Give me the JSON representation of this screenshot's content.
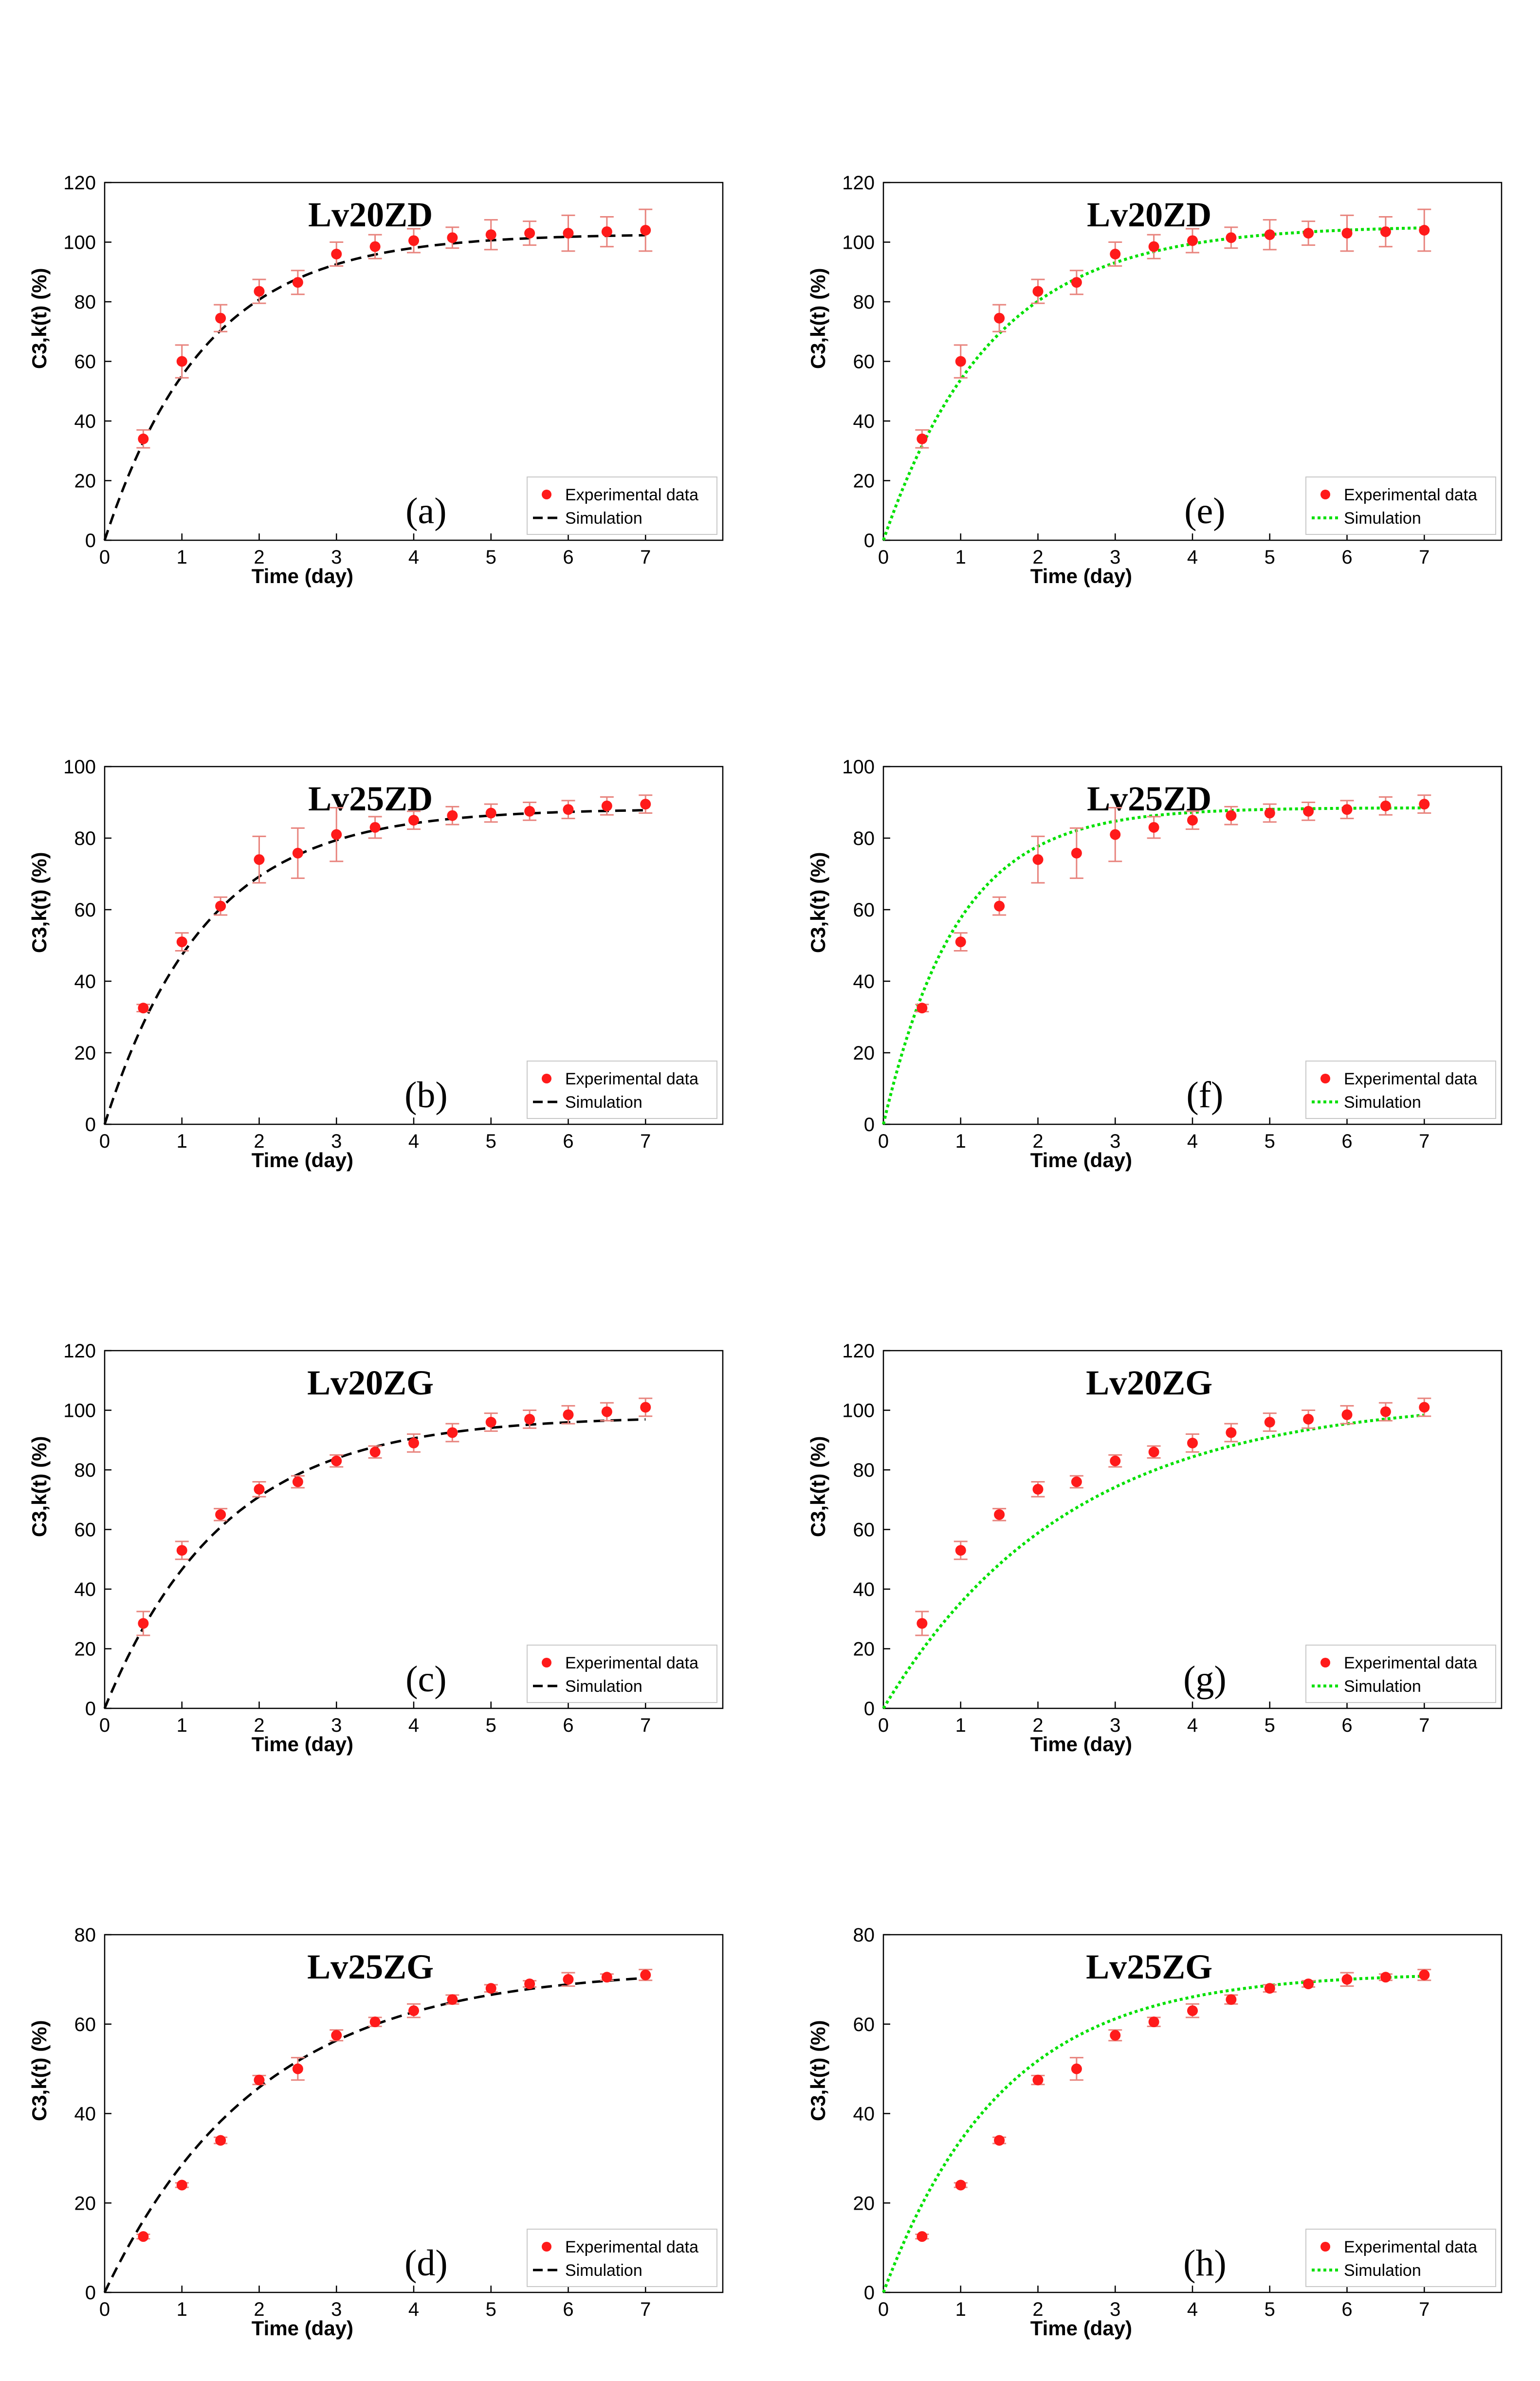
{
  "colors": {
    "points": "#ff1a1a",
    "errorbar": "#e8847e",
    "sim_dashed": "#000000",
    "sim_dotted": "#00e000"
  },
  "chart_data": [
    {
      "panel": "(a)",
      "type": "scatter",
      "title": "Lv20ZD",
      "xlabel": "Time (day)",
      "ylabel": "C3,k(t) (%)",
      "xlim": [
        0,
        8
      ],
      "ylim": [
        0,
        120
      ],
      "xticks": [
        0,
        1,
        2,
        3,
        4,
        5,
        6,
        7
      ],
      "yticks": [
        0,
        20,
        40,
        60,
        80,
        100,
        120
      ],
      "sim_style": "dashed",
      "sim_K": 102.8,
      "sim_tau": 1.3,
      "legend_position": "bottom-right",
      "legend": [
        "Experimental data",
        "Simulation"
      ],
      "x": [
        0.5,
        1,
        1.5,
        2,
        2.5,
        3,
        3.5,
        4,
        4.5,
        5,
        5.5,
        6,
        6.5,
        7
      ],
      "y": [
        34,
        60,
        74.5,
        83.5,
        86.5,
        96,
        98.5,
        100.5,
        101.5,
        102.5,
        103,
        103,
        103.5,
        104
      ],
      "err": [
        3,
        5.5,
        4.5,
        4,
        4,
        4,
        4,
        4,
        3.5,
        5,
        4,
        6,
        5,
        7
      ]
    },
    {
      "panel": "(b)",
      "type": "scatter",
      "title": "Lv25ZD",
      "xlabel": "Time (day)",
      "ylabel": "C3,k(t) (%)",
      "xlim": [
        0,
        8
      ],
      "ylim": [
        0,
        100
      ],
      "xticks": [
        0,
        1,
        2,
        3,
        4,
        5,
        6,
        7
      ],
      "yticks": [
        0,
        20,
        40,
        60,
        80,
        100
      ],
      "sim_style": "dashed",
      "sim_K": 88.2,
      "sim_tau": 1.3,
      "legend_position": "bottom-right",
      "legend": [
        "Experimental data",
        "Simulation"
      ],
      "x": [
        0.5,
        1,
        1.5,
        2,
        2.5,
        3,
        3.5,
        4,
        4.5,
        5,
        5.5,
        6,
        6.5,
        7
      ],
      "y": [
        32.5,
        51,
        61,
        74,
        75.8,
        81,
        83,
        85,
        86.3,
        87,
        87.5,
        88,
        89,
        89.5
      ],
      "err": [
        1,
        2.5,
        2.5,
        6.5,
        7,
        7.5,
        3,
        2.5,
        2.5,
        2.5,
        2.5,
        2.5,
        2.5,
        2.5
      ]
    },
    {
      "panel": "(c)",
      "type": "scatter",
      "title": "Lv20ZG",
      "xlabel": "Time (day)",
      "ylabel": "C3,k(t) (%)",
      "xlim": [
        0,
        8
      ],
      "ylim": [
        0,
        120
      ],
      "xticks": [
        0,
        1,
        2,
        3,
        4,
        5,
        6,
        7
      ],
      "yticks": [
        0,
        20,
        40,
        60,
        80,
        100,
        120
      ],
      "sim_style": "dashed",
      "sim_K": 98,
      "sim_tau": 1.55,
      "legend_position": "bottom-right",
      "legend": [
        "Experimental data",
        "Simulation"
      ],
      "x": [
        0.5,
        1,
        1.5,
        2,
        2.5,
        3,
        3.5,
        4,
        4.5,
        5,
        5.5,
        6,
        6.5,
        7
      ],
      "y": [
        28.5,
        53,
        65,
        73.5,
        76,
        83,
        86,
        89,
        92.5,
        96,
        97,
        98.5,
        99.5,
        101
      ],
      "err": [
        4,
        3,
        2,
        2.5,
        2,
        2,
        2,
        3,
        3,
        3,
        3,
        3,
        3,
        3
      ]
    },
    {
      "panel": "(d)",
      "type": "scatter",
      "title": "Lv25ZG",
      "xlabel": "Time (day)",
      "ylabel": "C3,k(t) (%)",
      "xlim": [
        0,
        8
      ],
      "ylim": [
        0,
        80
      ],
      "xticks": [
        0,
        1,
        2,
        3,
        4,
        5,
        6,
        7
      ],
      "yticks": [
        0,
        20,
        40,
        60,
        80
      ],
      "sim_style": "dashed",
      "sim_K": 72.5,
      "sim_tau": 2.0,
      "legend_position": "bottom-right",
      "legend": [
        "Experimental data",
        "Simulation"
      ],
      "x": [
        0.5,
        1,
        1.5,
        2,
        2.5,
        3,
        3.5,
        4,
        4.5,
        5,
        5.5,
        6,
        6.5,
        7
      ],
      "y": [
        12.5,
        24,
        34,
        47.5,
        50,
        57.5,
        60.5,
        63,
        65.5,
        68,
        69,
        70,
        70.5,
        71
      ],
      "err": [
        0.5,
        0.5,
        0.7,
        1,
        2.5,
        1.2,
        1,
        1.5,
        1,
        0.8,
        0.7,
        1.5,
        0.7,
        1.2
      ]
    },
    {
      "panel": "(e)",
      "type": "scatter",
      "title": "Lv20ZD",
      "xlabel": "Time (day)",
      "ylabel": "C3,k(t) (%)",
      "xlim": [
        0,
        8
      ],
      "ylim": [
        0,
        120
      ],
      "xticks": [
        0,
        1,
        2,
        3,
        4,
        5,
        6,
        7
      ],
      "yticks": [
        0,
        20,
        40,
        60,
        80,
        100,
        120
      ],
      "sim_style": "dotted",
      "sim_K": 105.5,
      "sim_tau": 1.4,
      "legend_position": "bottom-right",
      "legend": [
        "Experimental data",
        "Simulation"
      ],
      "x": [
        0.5,
        1,
        1.5,
        2,
        2.5,
        3,
        3.5,
        4,
        4.5,
        5,
        5.5,
        6,
        6.5,
        7
      ],
      "y": [
        34,
        60,
        74.5,
        83.5,
        86.5,
        96,
        98.5,
        100.5,
        101.5,
        102.5,
        103,
        103,
        103.5,
        104
      ],
      "err": [
        3,
        5.5,
        4.5,
        4,
        4,
        4,
        4,
        4,
        3.5,
        5,
        4,
        6,
        5,
        7
      ]
    },
    {
      "panel": "(f)",
      "type": "scatter",
      "title": "Lv25ZD",
      "xlabel": "Time (day)",
      "ylabel": "C3,k(t) (%)",
      "xlim": [
        0,
        8
      ],
      "ylim": [
        0,
        100
      ],
      "xticks": [
        0,
        1,
        2,
        3,
        4,
        5,
        6,
        7
      ],
      "yticks": [
        0,
        20,
        40,
        60,
        80,
        100
      ],
      "sim_style": "dotted",
      "sim_K": 88.5,
      "sim_tau": 0.95,
      "legend_position": "bottom-right",
      "legend": [
        "Experimental data",
        "Simulation"
      ],
      "x": [
        0.5,
        1,
        1.5,
        2,
        2.5,
        3,
        3.5,
        4,
        4.5,
        5,
        5.5,
        6,
        6.5,
        7
      ],
      "y": [
        32.5,
        51,
        61,
        74,
        75.8,
        81,
        83,
        85,
        86.3,
        87,
        87.5,
        88,
        89,
        89.5
      ],
      "err": [
        1,
        2.5,
        2.5,
        6.5,
        7,
        7.5,
        3,
        2.5,
        2.5,
        2.5,
        2.5,
        2.5,
        2.5,
        2.5
      ]
    },
    {
      "panel": "(g)",
      "type": "scatter",
      "title": "Lv20ZG",
      "xlabel": "Time (day)",
      "ylabel": "C3,k(t) (%)",
      "xlim": [
        0,
        8
      ],
      "ylim": [
        0,
        120
      ],
      "xticks": [
        0,
        1,
        2,
        3,
        4,
        5,
        6,
        7
      ],
      "yticks": [
        0,
        20,
        40,
        60,
        80,
        100,
        120
      ],
      "sim_style": "dotted",
      "sim_K": 104,
      "sim_tau": 2.4,
      "legend_position": "bottom-right",
      "legend": [
        "Experimental data",
        "Simulation"
      ],
      "x": [
        0.5,
        1,
        1.5,
        2,
        2.5,
        3,
        3.5,
        4,
        4.5,
        5,
        5.5,
        6,
        6.5,
        7
      ],
      "y": [
        28.5,
        53,
        65,
        73.5,
        76,
        83,
        86,
        89,
        92.5,
        96,
        97,
        98.5,
        99.5,
        101
      ],
      "err": [
        4,
        3,
        2,
        2.5,
        2,
        2,
        2,
        3,
        3,
        3,
        3,
        3,
        3,
        3
      ]
    },
    {
      "panel": "(h)",
      "type": "scatter",
      "title": "Lv25ZG",
      "xlabel": "Time (day)",
      "ylabel": "C3,k(t) (%)",
      "xlim": [
        0,
        8
      ],
      "ylim": [
        0,
        80
      ],
      "xticks": [
        0,
        1,
        2,
        3,
        4,
        5,
        6,
        7
      ],
      "yticks": [
        0,
        20,
        40,
        60,
        80
      ],
      "sim_style": "dotted",
      "sim_K": 71.5,
      "sim_tau": 1.55,
      "legend_position": "bottom-right",
      "legend": [
        "Experimental data",
        "Simulation"
      ],
      "x": [
        0.5,
        1,
        1.5,
        2,
        2.5,
        3,
        3.5,
        4,
        4.5,
        5,
        5.5,
        6,
        6.5,
        7
      ],
      "y": [
        12.5,
        24,
        34,
        47.5,
        50,
        57.5,
        60.5,
        63,
        65.5,
        68,
        69,
        70,
        70.5,
        71
      ],
      "err": [
        0.5,
        0.5,
        0.7,
        1,
        2.5,
        1.2,
        1,
        1.5,
        1,
        0.8,
        0.7,
        1.5,
        0.7,
        1.2
      ]
    }
  ]
}
